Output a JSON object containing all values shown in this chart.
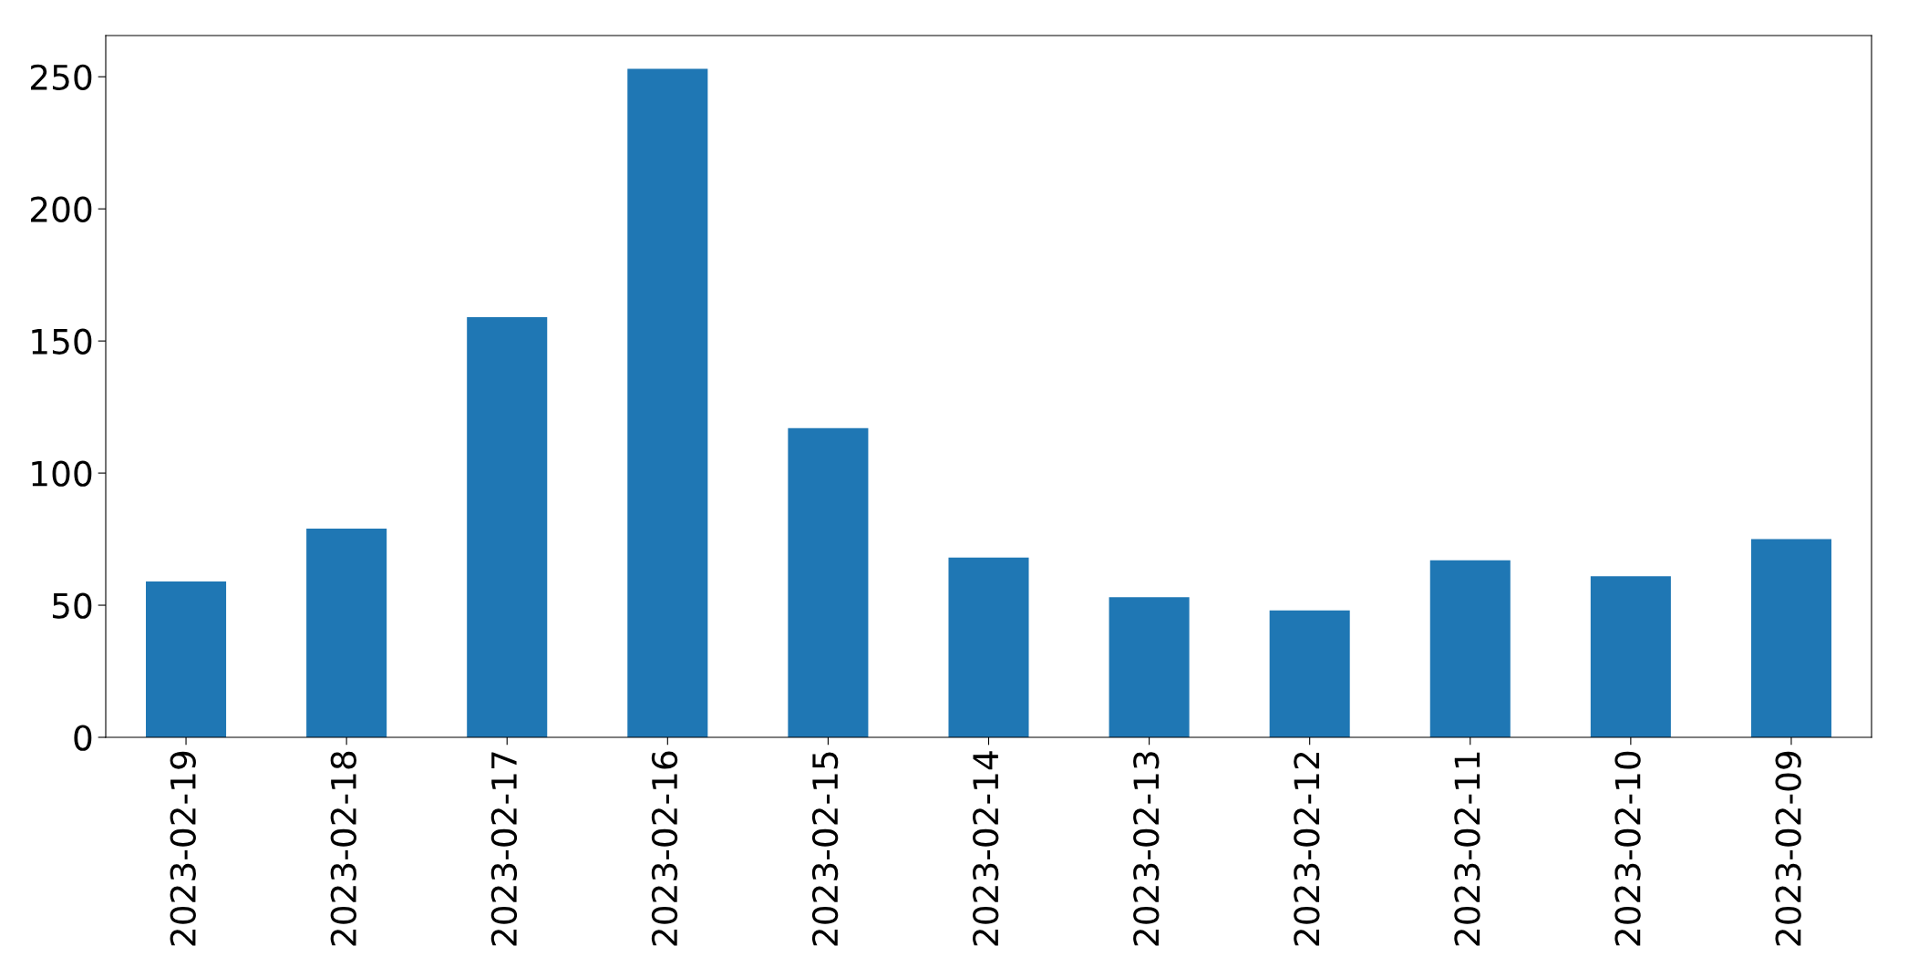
{
  "chart_data": {
    "type": "bar",
    "categories": [
      "2023-02-19",
      "2023-02-18",
      "2023-02-17",
      "2023-02-16",
      "2023-02-15",
      "2023-02-14",
      "2023-02-13",
      "2023-02-12",
      "2023-02-11",
      "2023-02-10",
      "2023-02-09"
    ],
    "values": [
      59,
      79,
      159,
      253,
      117,
      68,
      53,
      48,
      67,
      61,
      75
    ],
    "color": "#1f77b4",
    "ylim": [
      0,
      265.6
    ],
    "yticks": [
      0,
      50,
      100,
      150,
      200,
      250
    ],
    "grid": false,
    "legend": false
  }
}
